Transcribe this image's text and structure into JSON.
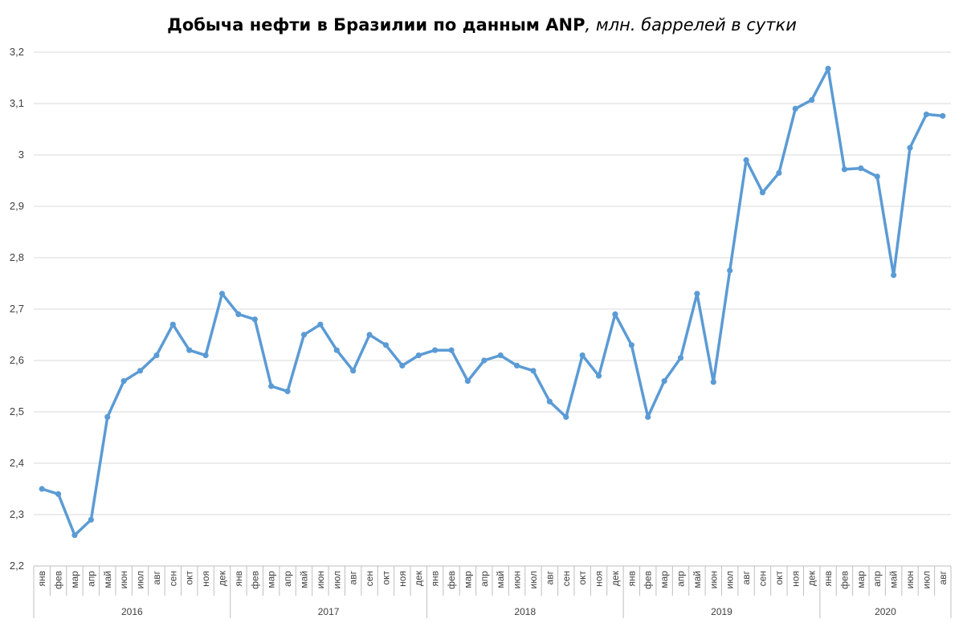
{
  "chart_data": {
    "type": "line",
    "title": "Добыча нефти в Бразилии по данным ANP",
    "subtitle": ", млн. баррелей в сутки",
    "xlabel": "",
    "ylabel": "",
    "ylim": [
      2.2,
      3.2
    ],
    "yticks": [
      "2,2",
      "2,3",
      "2,4",
      "2,5",
      "2,6",
      "2,7",
      "2,8",
      "2,9",
      "3",
      "3,1",
      "3,2"
    ],
    "grid": true,
    "legend": "none",
    "series_color": "#5b9bd5",
    "categories": [
      "янв",
      "фев",
      "мар",
      "апр",
      "май",
      "июн",
      "июл",
      "авг",
      "сен",
      "окт",
      "ноя",
      "дек",
      "янв",
      "фев",
      "мар",
      "апр",
      "май",
      "июн",
      "июл",
      "авг",
      "сен",
      "окт",
      "ноя",
      "дек",
      "янв",
      "фев",
      "мар",
      "апр",
      "май",
      "июн",
      "июл",
      "авг",
      "сен",
      "окт",
      "ноя",
      "дек",
      "янв",
      "фев",
      "мар",
      "апр",
      "май",
      "июн",
      "июл",
      "авг",
      "сен",
      "окт",
      "ноя",
      "дек",
      "янв",
      "фев",
      "мар",
      "апр",
      "май",
      "июн",
      "июл",
      "авг"
    ],
    "years": [
      {
        "label": "2016",
        "count": 12
      },
      {
        "label": "2017",
        "count": 12
      },
      {
        "label": "2018",
        "count": 12
      },
      {
        "label": "2019",
        "count": 12
      },
      {
        "label": "2020",
        "count": 8
      }
    ],
    "series": [
      {
        "values": [
          2.35,
          2.34,
          2.26,
          2.29,
          2.49,
          2.56,
          2.58,
          2.61,
          2.67,
          2.62,
          2.61,
          2.73,
          2.69,
          2.68,
          2.55,
          2.54,
          2.65,
          2.67,
          2.62,
          2.58,
          2.65,
          2.63,
          2.59,
          2.61,
          2.62,
          2.62,
          2.56,
          2.6,
          2.61,
          2.59,
          2.58,
          2.52,
          2.49,
          2.61,
          2.57,
          2.69,
          2.63,
          2.49,
          2.56,
          2.605,
          2.73,
          2.558,
          2.775,
          2.99,
          2.927,
          2.965,
          3.09,
          3.107,
          3.168,
          2.972,
          2.974,
          2.958,
          2.766,
          3.014,
          3.079,
          3.076
        ]
      }
    ]
  }
}
